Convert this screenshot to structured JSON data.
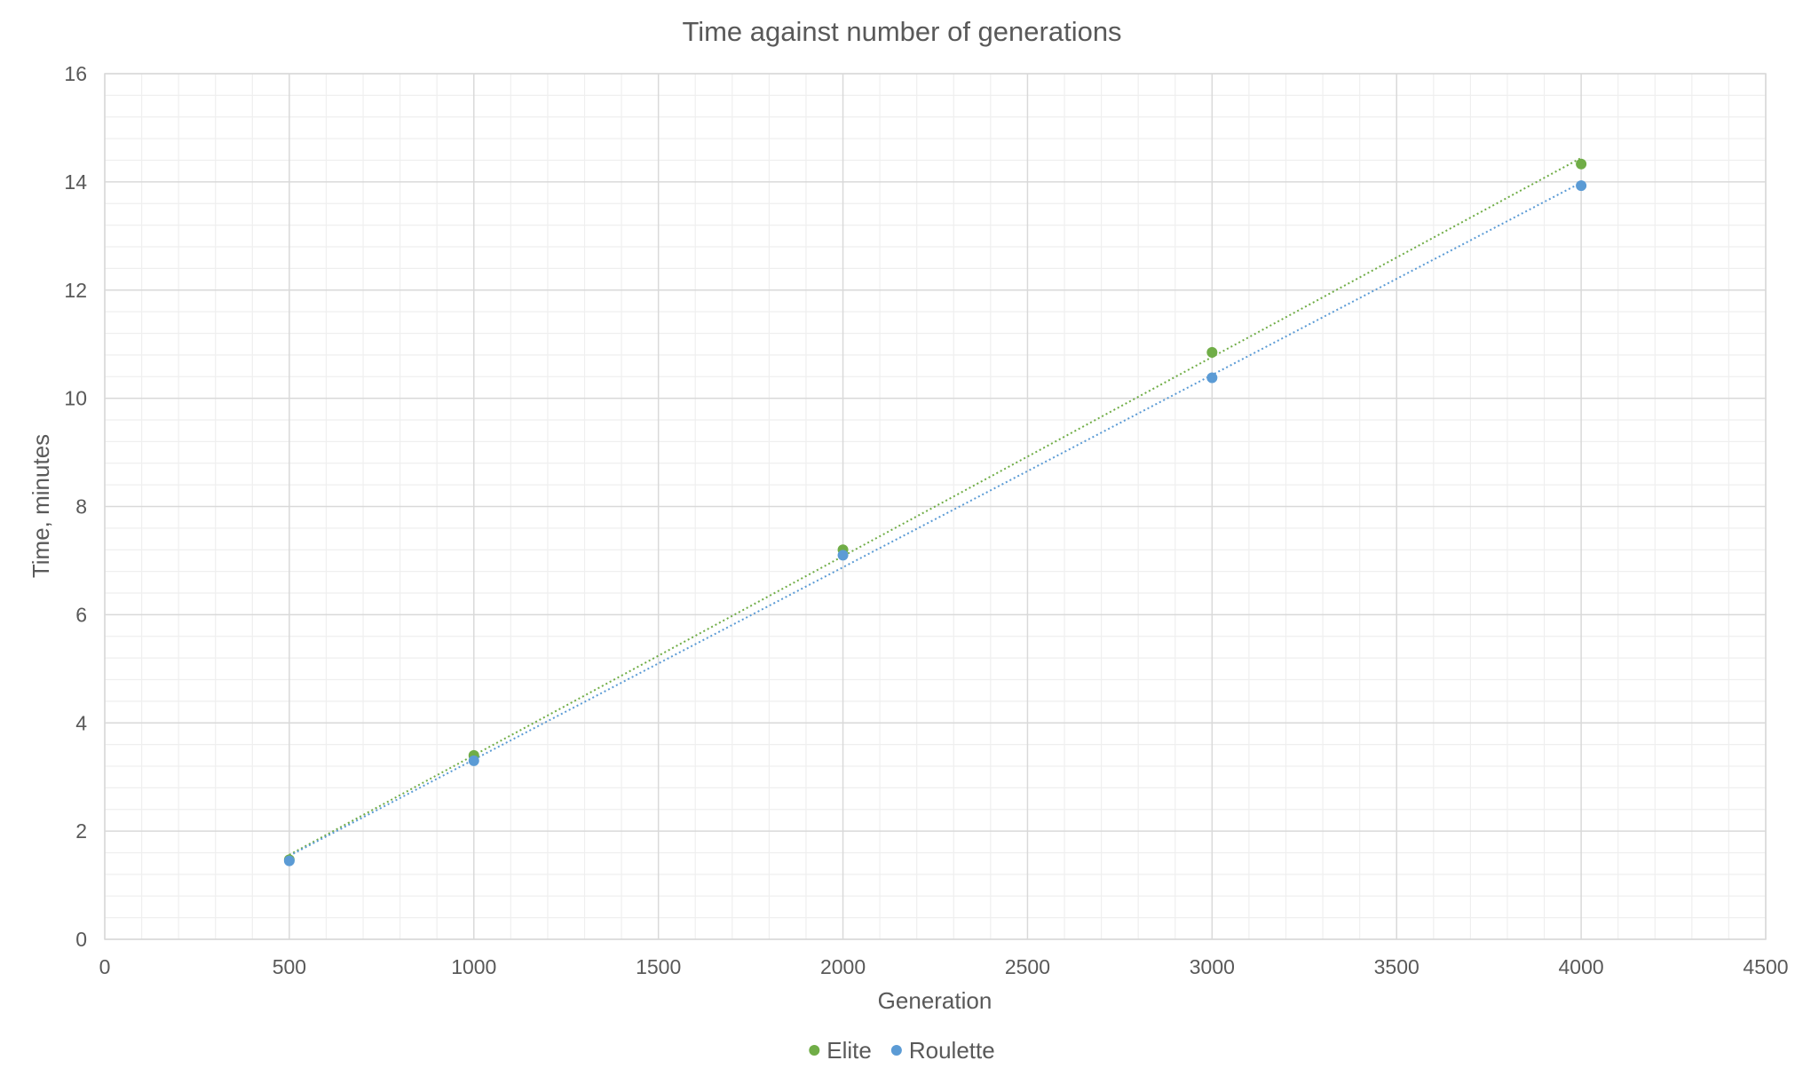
{
  "chart_data": {
    "type": "scatter",
    "title": "Time against number of generations",
    "xlabel": "Generation",
    "ylabel": "Time, minutes",
    "xlim": [
      0,
      4500
    ],
    "ylim": [
      0,
      16
    ],
    "x_ticks": [
      0,
      500,
      1000,
      1500,
      2000,
      2500,
      3000,
      3500,
      4000,
      4500
    ],
    "y_ticks": [
      0,
      2,
      4,
      6,
      8,
      10,
      12,
      14,
      16
    ],
    "x_minor_step": 100,
    "y_minor_step": 0.4,
    "grid": "major and minor",
    "legend_position": "bottom",
    "trendline": "linear, dotted",
    "series": [
      {
        "name": "Elite",
        "color": "#70ad47",
        "points": [
          {
            "x": 500,
            "y": 1.47
          },
          {
            "x": 1000,
            "y": 3.4
          },
          {
            "x": 2000,
            "y": 7.2
          },
          {
            "x": 3000,
            "y": 10.85
          },
          {
            "x": 4000,
            "y": 14.33
          }
        ]
      },
      {
        "name": "Roulette",
        "color": "#5b9bd5",
        "points": [
          {
            "x": 500,
            "y": 1.45
          },
          {
            "x": 1000,
            "y": 3.3
          },
          {
            "x": 2000,
            "y": 7.1
          },
          {
            "x": 3000,
            "y": 10.38
          },
          {
            "x": 4000,
            "y": 13.93
          }
        ]
      }
    ]
  }
}
